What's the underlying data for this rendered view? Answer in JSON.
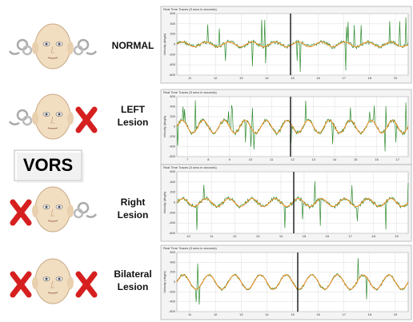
{
  "vors_label": "VORS",
  "rows": [
    {
      "label": [
        "NORMAL"
      ]
    },
    {
      "label": [
        "LEFT",
        "Lesion"
      ]
    },
    {
      "label": [
        "Right",
        "Lesion"
      ]
    },
    {
      "label": [
        "Bilateral",
        "Lesion"
      ]
    }
  ],
  "panels": [
    {
      "title": "Real Time Traces (5 secs in seconds)",
      "y_label": "Velocity (deg/s)",
      "yticks": [
        600,
        400,
        200,
        0,
        -200,
        -400,
        -600
      ],
      "xticks": [
        11,
        12,
        13,
        14,
        15,
        16,
        17,
        18,
        19
      ]
    },
    {
      "title": "Real Time Traces (5 secs in seconds)",
      "y_label": "Velocity (deg/s)",
      "yticks": [
        600,
        400,
        200,
        0,
        -200,
        -400,
        -600
      ],
      "xticks": [
        7,
        8,
        9,
        10,
        11,
        12,
        13,
        14,
        15,
        16,
        17
      ]
    },
    {
      "title": "Real Time Traces (5 secs in seconds)",
      "y_label": "Velocity (deg/s)",
      "yticks": [
        600,
        400,
        200,
        0,
        -200,
        -400,
        -600
      ],
      "xticks": [
        10,
        11,
        12,
        13,
        14,
        15,
        16,
        17,
        18,
        19
      ]
    },
    {
      "title": "Real Time Traces (5 secs in seconds)",
      "y_label": "Velocity (deg/s)",
      "yticks": [
        600,
        400,
        200,
        0,
        -200,
        -400,
        -600
      ],
      "xticks": [
        11,
        12,
        13,
        14,
        15,
        16,
        17,
        18,
        19
      ]
    }
  ]
}
